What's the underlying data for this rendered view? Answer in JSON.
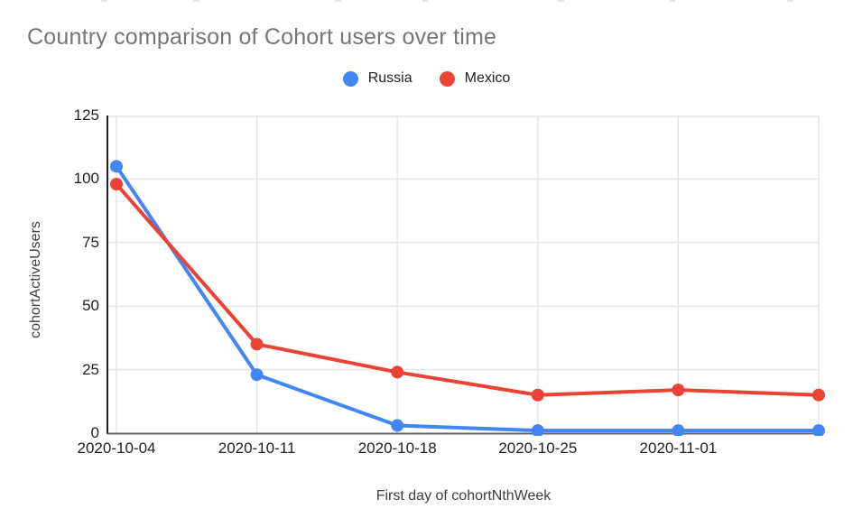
{
  "chart_data": {
    "type": "line",
    "title": "Country comparison of Cohort users over time",
    "xlabel": "First day of cohortNthWeek",
    "ylabel": "cohortActiveUsers",
    "x_tick_labels": [
      "2020-10-04",
      "2020-10-11",
      "2020-10-18",
      "2020-10-25",
      "2020-11-01"
    ],
    "num_points": 6,
    "series": [
      {
        "name": "Russia",
        "color": "#4285F4",
        "values": [
          105,
          23,
          3,
          1,
          1,
          1
        ]
      },
      {
        "name": "Mexico",
        "color": "#EA4335",
        "values": [
          98,
          35,
          24,
          15,
          17,
          15
        ]
      }
    ],
    "ylim": [
      0,
      125
    ],
    "y_ticks": [
      0,
      25,
      50,
      75,
      100,
      125
    ],
    "grid": true,
    "legend_position": "top",
    "colors": {
      "title_text": "#757575",
      "tick_text": "#222222",
      "axis_title_text": "#3c4043",
      "gridline": "#e6e6e6",
      "y_axis_line": "#212121",
      "x_axis_line": "#666666",
      "background": "#ffffff"
    },
    "marker_radius": 7,
    "line_width": 4
  }
}
